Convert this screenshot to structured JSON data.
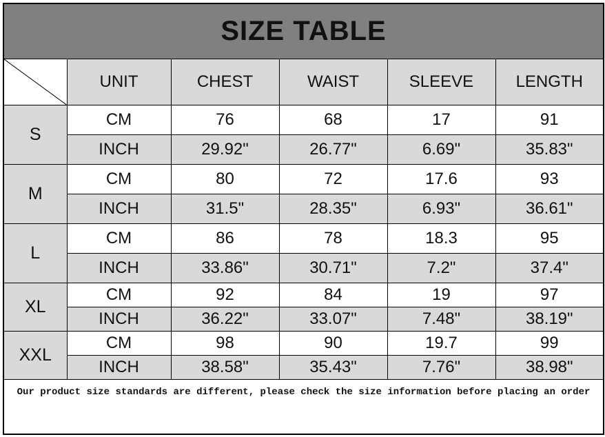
{
  "title": "SIZE TABLE",
  "headers": [
    "UNIT",
    "CHEST",
    "WAIST",
    "SLEEVE",
    "LENGTH"
  ],
  "sizes": [
    {
      "size": "S",
      "rows": [
        [
          "CM",
          "76",
          "68",
          "17",
          "91"
        ],
        [
          "INCH",
          "29.92\"",
          "26.77\"",
          "6.69\"",
          "35.83\""
        ]
      ]
    },
    {
      "size": "M",
      "rows": [
        [
          "CM",
          "80",
          "72",
          "17.6",
          "93"
        ],
        [
          "INCH",
          "31.5\"",
          "28.35\"",
          "6.93\"",
          "36.61\""
        ]
      ]
    },
    {
      "size": "L",
      "rows": [
        [
          "CM",
          "86",
          "78",
          "18.3",
          "95"
        ],
        [
          "INCH",
          "33.86\"",
          "30.71\"",
          "7.2\"",
          "37.4\""
        ]
      ]
    },
    {
      "size": "XL",
      "rows": [
        [
          "CM",
          "92",
          "84",
          "19",
          "97"
        ],
        [
          "INCH",
          "36.22\"",
          "33.07\"",
          "7.48\"",
          "38.19\""
        ]
      ]
    },
    {
      "size": "XXL",
      "rows": [
        [
          "CM",
          "98",
          "90",
          "19.7",
          "99"
        ],
        [
          "INCH",
          "38.58\"",
          "35.43\"",
          "7.76\"",
          "38.98\""
        ]
      ]
    }
  ],
  "footer": "Our product size standards are different, please check the size information before placing an order",
  "colors": {
    "title_bg": "#808080",
    "header_bg": "#d9d9d9",
    "row_alt_bg": "#d9d9d9"
  }
}
